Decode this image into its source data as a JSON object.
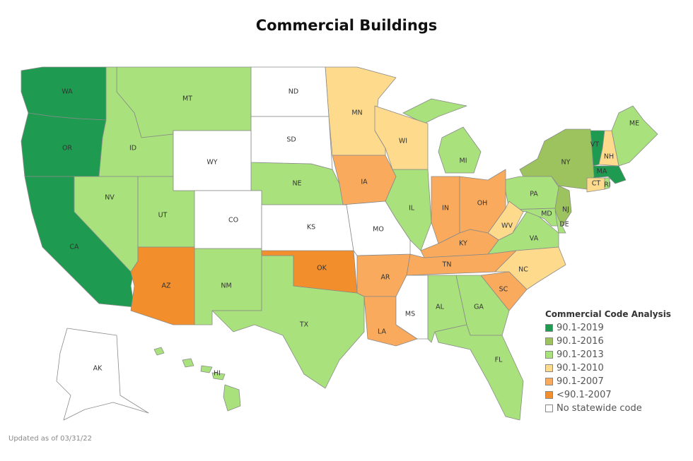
{
  "title": "Commercial Buildings",
  "footer": "Updated as of 03/31/22",
  "legend": {
    "title": "Commercial Code Analysis",
    "items": [
      {
        "key": "2019",
        "label": "90.1-2019",
        "color": "#1e9b50"
      },
      {
        "key": "2016",
        "label": "90.1-2016",
        "color": "#9dc35e"
      },
      {
        "key": "2013",
        "label": "90.1-2013",
        "color": "#a9e27c"
      },
      {
        "key": "2010",
        "label": "90.1-2010",
        "color": "#fdda8c"
      },
      {
        "key": "2007",
        "label": "90.1-2007",
        "color": "#f9aa5c"
      },
      {
        "key": "lt2007",
        "label": "<90.1-2007",
        "color": "#f28e2b"
      },
      {
        "key": "none",
        "label": "No statewide code",
        "color": "#ffffff"
      }
    ]
  },
  "states": {
    "WA": "2019",
    "OR": "2019",
    "CA": "2019",
    "VT": "2019",
    "MA": "2019",
    "NY": "2016",
    "NJ": "2016",
    "MT": "2013",
    "ID": "2013",
    "NV": "2013",
    "UT": "2013",
    "NE": "2013",
    "NM": "2013",
    "TX": "2013",
    "IL": "2013",
    "MI": "2013",
    "PA": "2013",
    "VA": "2013",
    "MD": "2013",
    "DE": "2013",
    "AL": "2013",
    "GA": "2013",
    "FL": "2013",
    "ME": "2013",
    "RI": "2013",
    "HI": "2013",
    "MN": "2010",
    "WI": "2010",
    "NH": "2010",
    "CT": "2010",
    "WV": "2010",
    "NC": "2010",
    "IA": "2007",
    "IN": "2007",
    "OH": "2007",
    "KY": "2007",
    "TN": "2007",
    "AR": "2007",
    "LA": "2007",
    "SC": "2007",
    "AZ": "lt2007",
    "OK": "lt2007",
    "ND": "none",
    "SD": "none",
    "WY": "none",
    "CO": "none",
    "KS": "none",
    "MO": "none",
    "MS": "none",
    "AK": "none"
  }
}
